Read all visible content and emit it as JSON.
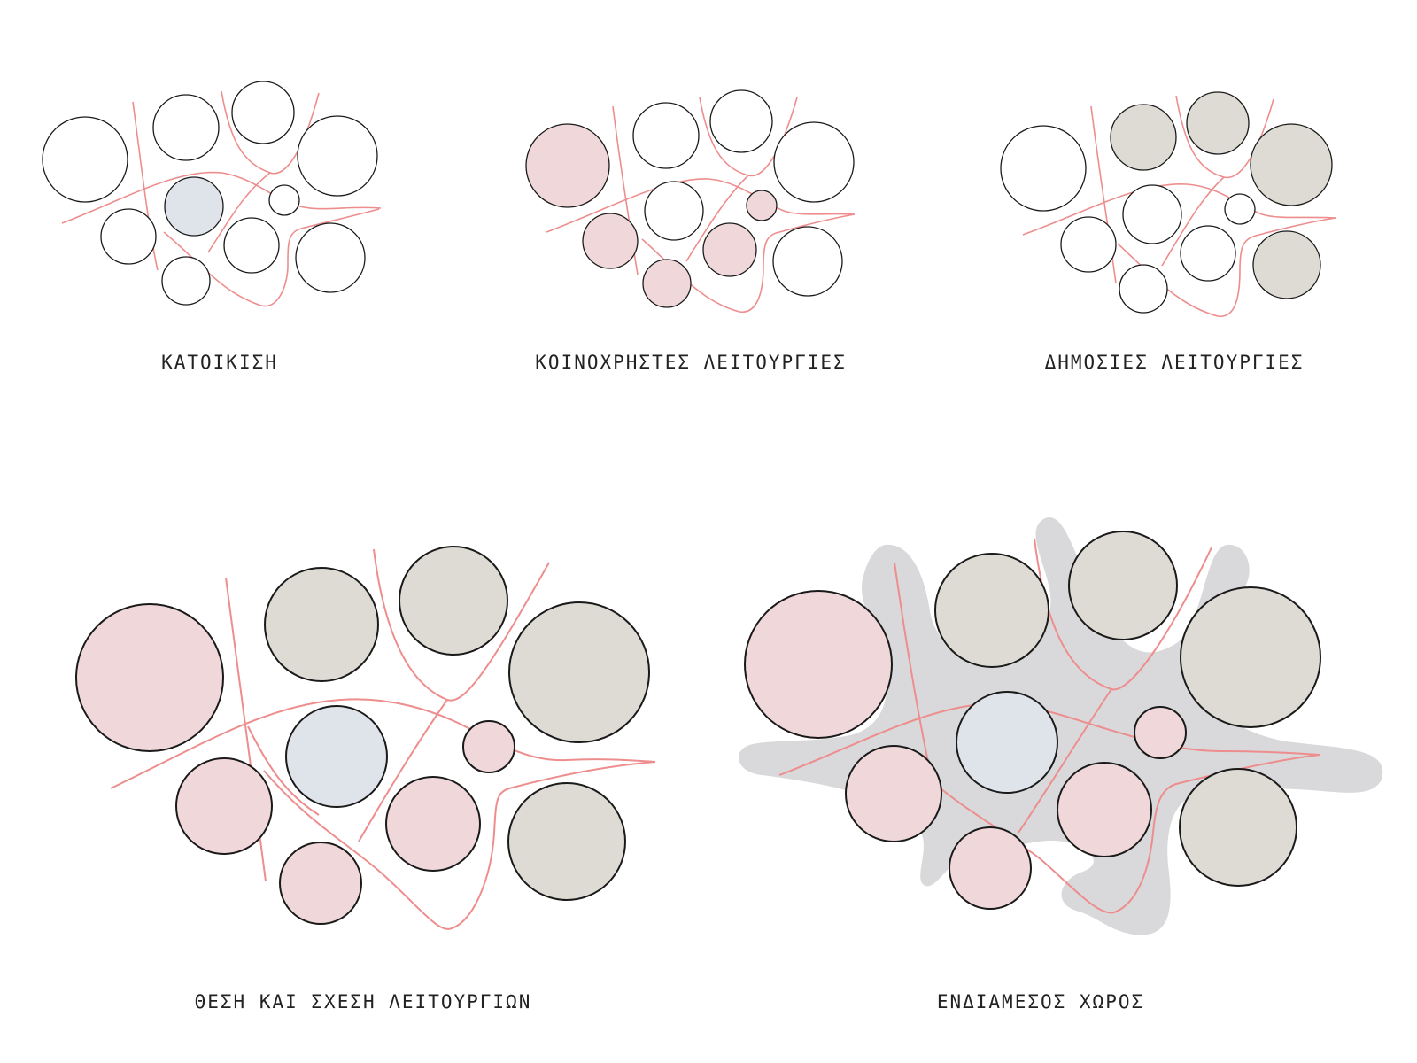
{
  "captions": {
    "housing": "ΚΑΤΟΙΚΙΣΗ",
    "shared": "ΚΟΙΝΟΧΡΗΣΤΕΣ ΛΕΙΤΟΥΡΓΙΕΣ",
    "public": "ΔΗΜΟΣΙΕΣ ΛΕΙΤΟΥΡΓΙΕΣ",
    "relation": "ΘΕΣΗ ΚΑΙ ΣΧΕΣΗ ΛΕΙΤΟΥΡΓΙΩΝ",
    "inbetween": "ΕΝΔΙΑΜΕΣΟΣ ΧΩΡΟΣ"
  },
  "colors": {
    "housing_fill": "#dfe3ea",
    "shared_fill": "#f0d7d9",
    "public_fill": "#dddbd3",
    "empty_fill": "#ffffff",
    "path_stroke": "#ee8d8d",
    "inbetween_fill": "#d9d9db"
  }
}
